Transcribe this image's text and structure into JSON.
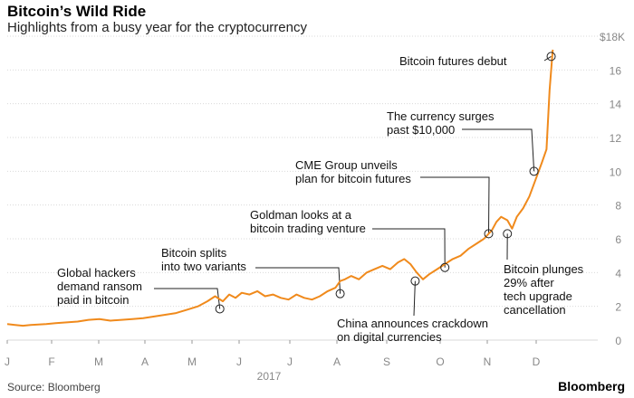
{
  "header": {
    "title": "Bitcoin’s Wild Ride",
    "subtitle": "Highlights from a busy year for the cryptocurrency"
  },
  "footer": {
    "source": "Source: Bloomberg",
    "brand": "Bloomberg"
  },
  "chart_data": {
    "type": "line",
    "colors": {
      "line": "#f08a1c",
      "grid": "#d9d9d9",
      "tick": "#888888"
    },
    "x_tick_labels": [
      "J",
      "F",
      "M",
      "A",
      "M",
      "J",
      "J",
      "A",
      "S",
      "O",
      "N",
      "D"
    ],
    "year_label": "2017",
    "y_ticks": [
      0,
      2,
      4,
      6,
      8,
      10,
      12,
      14,
      16
    ],
    "y_top_label": "$18K",
    "ylim": [
      0,
      18
    ],
    "xlim": [
      0,
      350
    ],
    "series": [
      {
        "x": [
          0,
          5,
          10,
          15,
          20,
          25,
          31,
          38,
          45,
          52,
          59,
          66,
          73,
          80,
          87,
          94,
          101,
          108,
          115,
          122,
          128,
          133,
          138,
          142,
          146,
          150,
          155,
          160,
          165,
          170,
          175,
          180,
          185,
          190,
          195,
          200,
          205,
          210,
          213,
          216,
          220,
          225,
          230,
          235,
          240,
          245,
          250,
          254,
          258,
          262,
          266,
          270,
          275,
          280,
          285,
          290,
          295,
          300,
          305,
          310,
          313,
          316,
          320,
          323,
          326,
          330,
          334,
          338,
          342,
          345,
          347,
          349
        ],
        "y": [
          0.95,
          0.9,
          0.85,
          0.9,
          0.92,
          0.95,
          1.0,
          1.05,
          1.1,
          1.2,
          1.25,
          1.15,
          1.2,
          1.25,
          1.3,
          1.4,
          1.5,
          1.6,
          1.8,
          2.0,
          2.3,
          2.6,
          2.3,
          2.7,
          2.5,
          2.8,
          2.7,
          2.9,
          2.6,
          2.7,
          2.5,
          2.4,
          2.7,
          2.5,
          2.4,
          2.6,
          2.9,
          3.1,
          3.5,
          3.6,
          3.8,
          3.6,
          4.0,
          4.2,
          4.4,
          4.2,
          4.6,
          4.8,
          4.5,
          4.0,
          3.6,
          3.9,
          4.2,
          4.5,
          4.8,
          5.0,
          5.4,
          5.7,
          6.0,
          6.5,
          7.0,
          7.3,
          7.1,
          6.6,
          7.3,
          7.8,
          8.5,
          9.5,
          10.5,
          11.3,
          14.8,
          17.2
        ]
      }
    ],
    "annotations": [
      {
        "text": [
          "Global hackers",
          "demand ransom",
          "paid in bitcoin"
        ],
        "x": 136,
        "y": 1.85
      },
      {
        "text": [
          "Bitcoin splits",
          "into two variants"
        ],
        "x": 213,
        "y": 2.75
      },
      {
        "text": [
          "Goldman looks at a",
          "bitcoin trading venture"
        ],
        "x": 280,
        "y": 4.3
      },
      {
        "text": [
          "China announces crackdown",
          "on digital currencies"
        ],
        "x": 261,
        "y": 3.5
      },
      {
        "text": [
          "CME Group unveils",
          "plan for bitcoin futures"
        ],
        "x": 308,
        "y": 6.3
      },
      {
        "text": [
          "Bitcoin plunges",
          "29% after",
          "tech upgrade",
          "cancellation"
        ],
        "x": 320,
        "y": 6.3
      },
      {
        "text": [
          "The currency surges",
          "past $10,000"
        ],
        "x": 337,
        "y": 10.0
      },
      {
        "text": [
          "Bitcoin futures debut"
        ],
        "x": 348,
        "y": 16.8
      }
    ]
  }
}
